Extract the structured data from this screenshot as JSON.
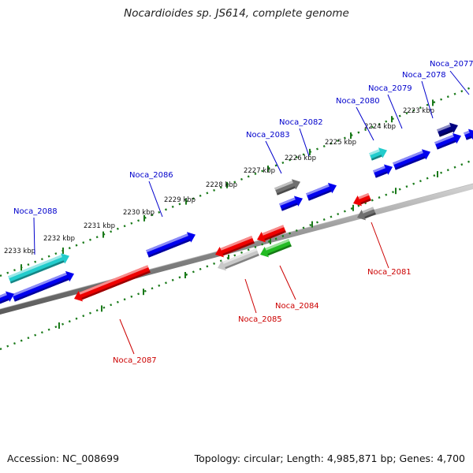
{
  "title": "Nocardioides sp. JS614, complete genome",
  "footer": {
    "accession_label": "Accession: NC_008699",
    "stats_label": "Topology: circular; Length: 4,985,871 bp; Genes: 4,700"
  },
  "colors": {
    "forward_label": "#0000cc",
    "reverse_label": "#cc0000",
    "backbone": "#808080",
    "tick_major": "#1a7a1a",
    "blue": "#0000ee",
    "cyan": "#22cccc",
    "navy": "#000080",
    "red": "#ee0000",
    "green": "#22bb22",
    "gray": "#707070",
    "lightgray": "#c8c8c8"
  },
  "scale_labels": [
    "2223 kbp",
    "2224 kbp",
    "2225 kbp",
    "2226 kbp",
    "2227 kbp",
    "2228 kbp",
    "2229 kbp",
    "2230 kbp",
    "2231 kbp",
    "2232 kbp",
    "2233 kbp"
  ],
  "gene_labels": [
    {
      "text": "Noca_2077",
      "strand": "forward"
    },
    {
      "text": "Noca_2078",
      "strand": "forward"
    },
    {
      "text": "Noca_2079",
      "strand": "forward"
    },
    {
      "text": "Noca_2080",
      "strand": "forward"
    },
    {
      "text": "Noca_2082",
      "strand": "forward"
    },
    {
      "text": "Noca_2083",
      "strand": "forward"
    },
    {
      "text": "Noca_2086",
      "strand": "forward"
    },
    {
      "text": "Noca_2088",
      "strand": "forward"
    },
    {
      "text": "Noca_2081",
      "strand": "reverse"
    },
    {
      "text": "Noca_2084",
      "strand": "reverse"
    },
    {
      "text": "Noca_2085",
      "strand": "reverse"
    },
    {
      "text": "Noca_2087",
      "strand": "reverse"
    }
  ]
}
